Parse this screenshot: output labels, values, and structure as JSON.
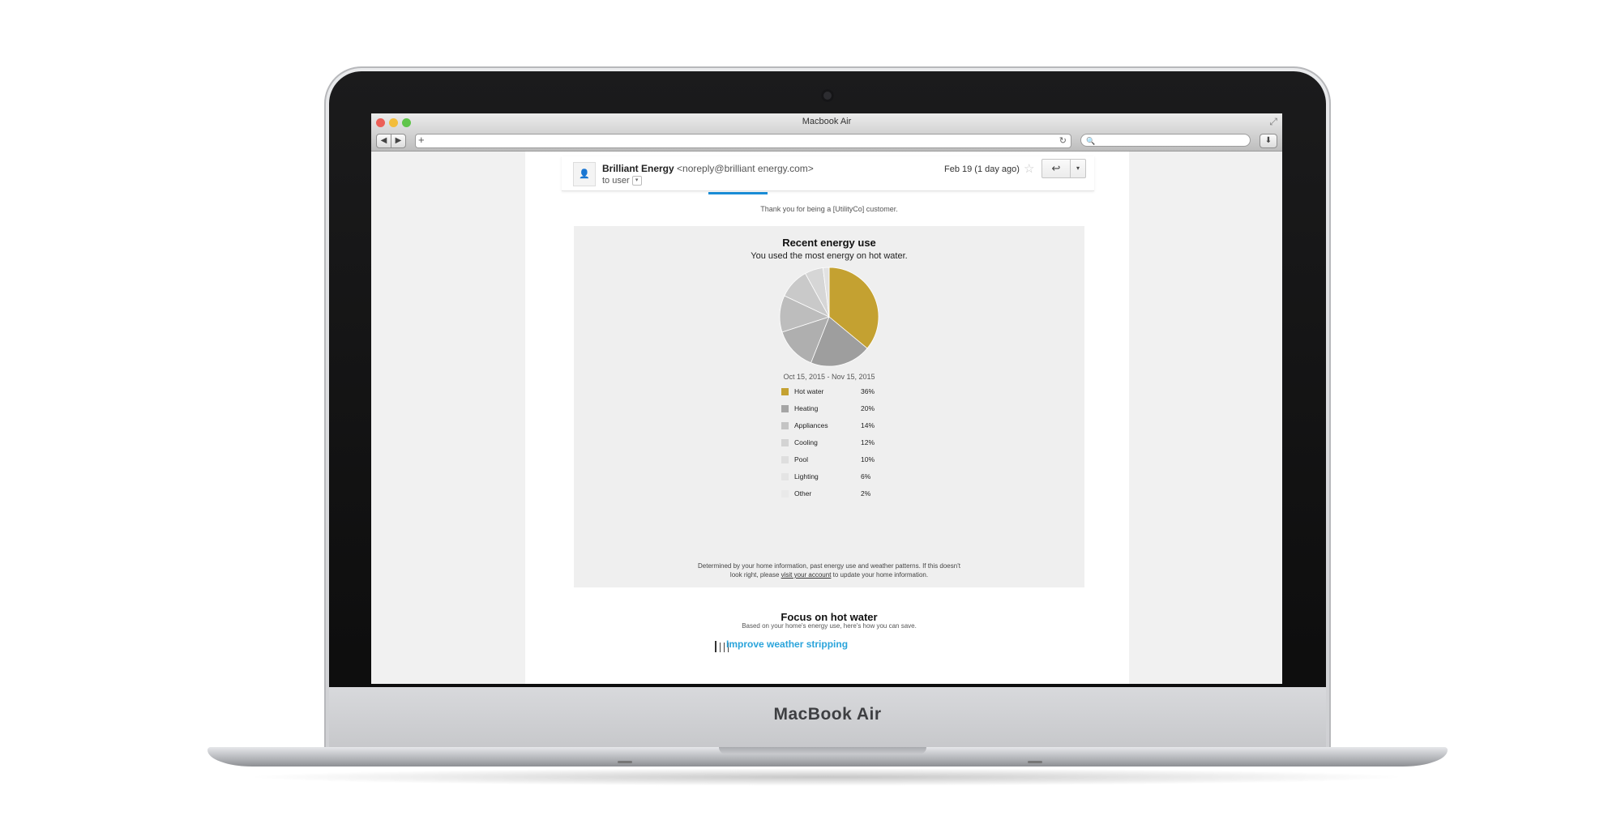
{
  "device": {
    "brand": "MacBook Air"
  },
  "browser": {
    "window_title": "Macbook Air",
    "back_glyph": "◀",
    "forward_glyph": "▶",
    "add_glyph": "+",
    "reload_glyph": "↻",
    "search_glyph": "🔍",
    "download_glyph": "⬇",
    "resize_glyph": "⤢"
  },
  "email": {
    "sender_name": "Brilliant Energy",
    "sender_email": "<noreply@brilliant energy.com>",
    "to_label": "to user",
    "date": "Feb 19 (1 day ago)",
    "reply_glyph": "↩",
    "more_glyph": "▾",
    "thanks": "Thank you for being a [UtilityCo] customer."
  },
  "energy_panel": {
    "title": "Recent energy use",
    "subtitle": "You used the most energy on hot water.",
    "date_range": "Oct 15, 2015 - Nov 15, 2015",
    "note_before": "Determined by your home information, past energy use and weather patterns. If this doesn't look right, please ",
    "note_link": "visit your account",
    "note_after": " to update your home information."
  },
  "chart_data": {
    "type": "pie",
    "categories": [
      "Hot water",
      "Heating",
      "Appliances",
      "Cooling",
      "Pool",
      "Lighting",
      "Other"
    ],
    "values": [
      36,
      20,
      14,
      12,
      10,
      6,
      2
    ],
    "labels": [
      "36%",
      "20%",
      "14%",
      "12%",
      "10%",
      "6%",
      "2%"
    ],
    "colors": [
      "#c4a131",
      "#9e9e9e",
      "#afafaf",
      "#bdbdbd",
      "#c9c9c9",
      "#d6d6d6",
      "#e2e2e2"
    ],
    "legend_swatches": [
      "#c4a131",
      "#a5a5a5",
      "#c4c4c4",
      "#d3d3d3",
      "#dedede",
      "#e4e4e4",
      "#e9e9e9"
    ]
  },
  "focus": {
    "title": "Focus on hot water",
    "subtitle": "Based on your home's energy use, here's how you can save.",
    "link": "Improve weather stripping"
  }
}
